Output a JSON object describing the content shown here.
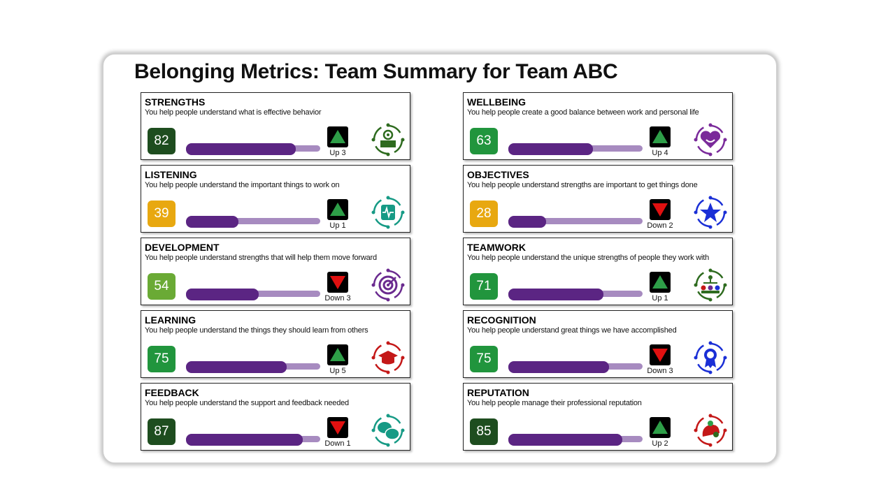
{
  "title": "Belonging Metrics: Team Summary for Team ABC",
  "colors": {
    "bar_fill": "#5b2583",
    "bar_track": "#a78bc0",
    "up": "#2e9e48",
    "down": "#e01010"
  },
  "metrics": [
    {
      "name": "STRENGTHS",
      "desc": "You help people understand what is effective behavior",
      "score": "82",
      "score_color": "#1e4d1f",
      "progress": 82,
      "trend": "up",
      "trend_label": "Up 3",
      "icon": "strengths-icon",
      "icon_color": "#2e6b1f"
    },
    {
      "name": "LISTENING",
      "desc": "You help people understand the important things to work on",
      "score": "39",
      "score_color": "#e8a810",
      "progress": 39,
      "trend": "up",
      "trend_label": "Up 1",
      "icon": "listening-icon",
      "icon_color": "#169a85"
    },
    {
      "name": "DEVELOPMENT",
      "desc": "You help people understand strengths that will help them move forward",
      "score": "54",
      "score_color": "#6aaa35",
      "progress": 54,
      "trend": "down",
      "trend_label": "Down 3",
      "icon": "development-icon",
      "icon_color": "#6a2a8f"
    },
    {
      "name": "LEARNING",
      "desc": "You help people understand the things they should learn from others",
      "score": "75",
      "score_color": "#21953d",
      "progress": 75,
      "trend": "up",
      "trend_label": "Up 5",
      "icon": "learning-icon",
      "icon_color": "#c41818"
    },
    {
      "name": "FEEDBACK",
      "desc": "You help people understand the support and feedback needed",
      "score": "87",
      "score_color": "#1e4d1f",
      "progress": 87,
      "trend": "down",
      "trend_label": "Down 1",
      "icon": "feedback-icon",
      "icon_color": "#169a85"
    },
    {
      "name": "WELLBEING",
      "desc": "You help people create a good balance between work and personal life",
      "score": "63",
      "score_color": "#21953d",
      "progress": 63,
      "trend": "up",
      "trend_label": "Up 4",
      "icon": "wellbeing-icon",
      "icon_color": "#7a2a9a"
    },
    {
      "name": "OBJECTIVES",
      "desc": "You help people understand strengths are important to get things done",
      "score": "28",
      "score_color": "#e8a810",
      "progress": 28,
      "trend": "down",
      "trend_label": "Down 2",
      "icon": "objectives-icon",
      "icon_color": "#1a2fd6"
    },
    {
      "name": "TEAMWORK",
      "desc": "You help people understand the unique strengths of people they work with",
      "score": "71",
      "score_color": "#21953d",
      "progress": 71,
      "trend": "up",
      "trend_label": "Up 1",
      "icon": "teamwork-icon",
      "icon_color": "#2e6b1f"
    },
    {
      "name": "RECOGNITION",
      "desc": "You help people understand great things we have accomplished",
      "score": "75",
      "score_color": "#21953d",
      "progress": 75,
      "trend": "down",
      "trend_label": "Down 3",
      "icon": "recognition-icon",
      "icon_color": "#1a2fd6"
    },
    {
      "name": "REPUTATION",
      "desc": "You help people manage their professional reputation",
      "score": "85",
      "score_color": "#1e4d1f",
      "progress": 85,
      "trend": "up",
      "trend_label": "Up 2",
      "icon": "reputation-icon",
      "icon_color": "#c41818"
    }
  ]
}
